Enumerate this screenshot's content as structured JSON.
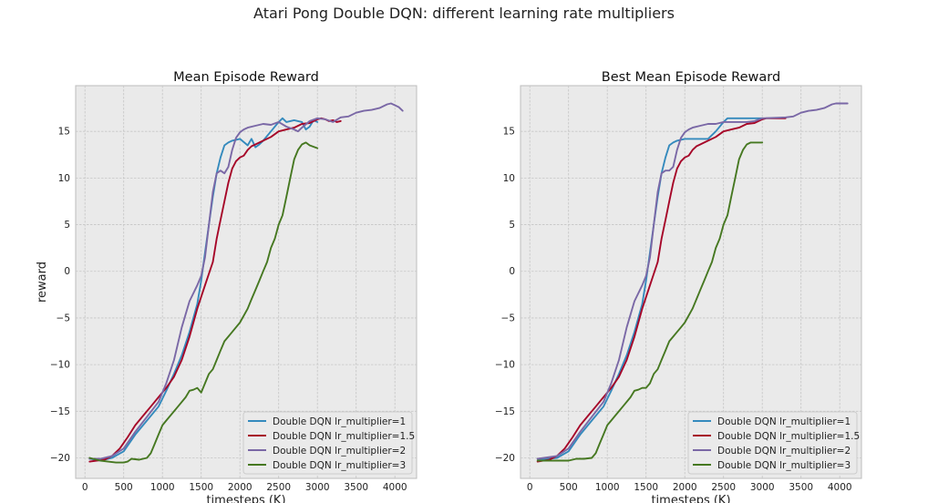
{
  "suptitle": "Atari Pong Double DQN: different learning rate multipliers",
  "colors": {
    "lr_1": "#348abd",
    "lr_1_5": "#a60628",
    "lr_2": "#7a68a6",
    "lr_3": "#467821",
    "panel_bg": "#eaeaea",
    "grid": "#c6c6c6"
  },
  "chart_data": [
    {
      "type": "line",
      "title": "Mean Episode Reward",
      "xlabel": "timesteps (K)",
      "ylabel": "reward",
      "xlim": [
        -120,
        4280
      ],
      "ylim": [
        -22.2,
        19.9
      ],
      "xticks": [
        0,
        500,
        1000,
        1500,
        2000,
        2500,
        3000,
        3500,
        4000
      ],
      "yticks": [
        -20,
        -15,
        -10,
        -5,
        0,
        5,
        10,
        15
      ],
      "grid": true,
      "legend_position": "lower-right",
      "series": [
        {
          "name": "Double DQN lr_multiplier=1",
          "color_key": "lr_1",
          "x": [
            60,
            200,
            350,
            500,
            650,
            800,
            950,
            1050,
            1150,
            1250,
            1350,
            1450,
            1500,
            1550,
            1600,
            1650,
            1700,
            1750,
            1800,
            1850,
            1900,
            2000,
            2100,
            2150,
            2200,
            2250,
            2300,
            2400,
            2500,
            2550,
            2600,
            2700,
            2800,
            2850,
            2900,
            2950,
            3000
          ],
          "y": [
            -20.1,
            -20.3,
            -20.0,
            -19.3,
            -17.5,
            -16.0,
            -14.5,
            -12.8,
            -11.0,
            -9.0,
            -6.5,
            -3.5,
            -1.0,
            2.0,
            5.0,
            8.0,
            10.5,
            12.2,
            13.5,
            13.8,
            14.0,
            14.2,
            13.5,
            14.2,
            13.3,
            13.6,
            14.0,
            15.0,
            16.0,
            16.4,
            16.0,
            16.2,
            16.0,
            15.2,
            15.5,
            16.2,
            16.0
          ]
        },
        {
          "name": "Double DQN lr_multiplier=1.5",
          "color_key": "lr_1_5",
          "x": [
            60,
            150,
            250,
            350,
            450,
            550,
            650,
            750,
            850,
            950,
            1050,
            1150,
            1250,
            1350,
            1450,
            1550,
            1650,
            1700,
            1750,
            1800,
            1850,
            1900,
            1950,
            2000,
            2050,
            2100,
            2150,
            2200,
            2300,
            2400,
            2500,
            2600,
            2700,
            2800,
            2900,
            3000,
            3050,
            3100,
            3150,
            3200,
            3250,
            3300
          ],
          "y": [
            -20.4,
            -20.3,
            -20.2,
            -19.8,
            -19.0,
            -17.8,
            -16.5,
            -15.5,
            -14.5,
            -13.5,
            -12.5,
            -11.3,
            -9.5,
            -7.0,
            -4.0,
            -1.5,
            1.0,
            3.5,
            5.5,
            7.5,
            9.5,
            11.0,
            11.8,
            12.2,
            12.4,
            13.0,
            13.4,
            13.6,
            14.0,
            14.4,
            15.0,
            15.2,
            15.4,
            15.8,
            15.9,
            16.3,
            16.4,
            16.3,
            16.1,
            16.2,
            16.0,
            16.1
          ]
        },
        {
          "name": "Double DQN lr_multiplier=2",
          "color_key": "lr_2",
          "x": [
            60,
            200,
            350,
            500,
            650,
            800,
            950,
            1050,
            1150,
            1250,
            1350,
            1450,
            1500,
            1550,
            1600,
            1650,
            1700,
            1750,
            1800,
            1850,
            1900,
            1950,
            2000,
            2050,
            2100,
            2200,
            2300,
            2400,
            2500,
            2600,
            2700,
            2750,
            2800,
            2900,
            3000,
            3100,
            3200,
            3300,
            3400,
            3500,
            3600,
            3700,
            3800,
            3900,
            3950,
            4000,
            4050,
            4100
          ],
          "y": [
            -20.1,
            -20.1,
            -19.8,
            -19.0,
            -17.2,
            -15.6,
            -14.0,
            -12.0,
            -9.5,
            -6.0,
            -3.2,
            -1.5,
            -0.5,
            1.5,
            5.0,
            8.5,
            10.5,
            10.8,
            10.5,
            11.2,
            13.0,
            14.3,
            14.9,
            15.2,
            15.4,
            15.6,
            15.8,
            15.7,
            16.0,
            15.5,
            15.2,
            15.0,
            15.4,
            16.1,
            16.4,
            16.3,
            16.0,
            16.5,
            16.6,
            17.0,
            17.2,
            17.3,
            17.5,
            17.9,
            18.0,
            17.8,
            17.6,
            17.2
          ]
        },
        {
          "name": "Double DQN lr_multiplier=3",
          "color_key": "lr_3",
          "x": [
            60,
            200,
            300,
            400,
            500,
            550,
            600,
            700,
            800,
            850,
            900,
            950,
            1000,
            1050,
            1100,
            1200,
            1300,
            1350,
            1400,
            1450,
            1500,
            1550,
            1600,
            1650,
            1700,
            1750,
            1800,
            1850,
            1900,
            1950,
            2000,
            2100,
            2150,
            2200,
            2250,
            2300,
            2350,
            2400,
            2450,
            2500,
            2550,
            2600,
            2650,
            2700,
            2750,
            2800,
            2850,
            2900,
            3000
          ],
          "y": [
            -20.0,
            -20.3,
            -20.4,
            -20.5,
            -20.5,
            -20.4,
            -20.1,
            -20.2,
            -20.0,
            -19.5,
            -18.5,
            -17.5,
            -16.5,
            -16.0,
            -15.5,
            -14.5,
            -13.5,
            -12.8,
            -12.7,
            -12.5,
            -13.0,
            -12.0,
            -11.0,
            -10.5,
            -9.5,
            -8.5,
            -7.5,
            -7.0,
            -6.5,
            -6.0,
            -5.5,
            -4.0,
            -3.0,
            -2.0,
            -1.0,
            0.0,
            1.0,
            2.5,
            3.5,
            5.0,
            6.0,
            8.0,
            10.0,
            12.0,
            13.0,
            13.6,
            13.8,
            13.5,
            13.2
          ]
        }
      ]
    },
    {
      "type": "line",
      "title": "Best Mean Episode Reward",
      "xlabel": "timesteps (K)",
      "ylabel": "",
      "xlim": [
        -120,
        4280
      ],
      "ylim": [
        -22.2,
        19.9
      ],
      "xticks": [
        0,
        500,
        1000,
        1500,
        2000,
        2500,
        3000,
        3500,
        4000
      ],
      "yticks": [
        -20,
        -15,
        -10,
        -5,
        0,
        5,
        10,
        15
      ],
      "grid": true,
      "legend_position": "lower-right",
      "series": [
        {
          "name": "Double DQN lr_multiplier=1",
          "color_key": "lr_1",
          "x": [
            100,
            200,
            350,
            500,
            650,
            800,
            950,
            1050,
            1150,
            1250,
            1350,
            1450,
            1500,
            1550,
            1600,
            1650,
            1700,
            1750,
            1800,
            1850,
            1900,
            2000,
            2100,
            2200,
            2300,
            2400,
            2500,
            2550,
            2600,
            2700,
            2800,
            2900,
            3000
          ],
          "y": [
            -20.1,
            -20.1,
            -20.0,
            -19.3,
            -17.5,
            -16.0,
            -14.5,
            -12.8,
            -11.0,
            -9.0,
            -6.5,
            -3.5,
            -1.0,
            2.0,
            5.0,
            8.0,
            10.5,
            12.2,
            13.5,
            13.8,
            14.0,
            14.2,
            14.2,
            14.2,
            14.2,
            15.0,
            16.0,
            16.4,
            16.4,
            16.4,
            16.4,
            16.4,
            16.4
          ]
        },
        {
          "name": "Double DQN lr_multiplier=1.5",
          "color_key": "lr_1_5",
          "x": [
            100,
            250,
            350,
            450,
            550,
            650,
            750,
            850,
            950,
            1050,
            1150,
            1250,
            1350,
            1450,
            1550,
            1650,
            1700,
            1750,
            1800,
            1850,
            1900,
            1950,
            2000,
            2050,
            2100,
            2150,
            2200,
            2300,
            2400,
            2500,
            2600,
            2700,
            2800,
            2900,
            3000,
            3050,
            3150,
            3300
          ],
          "y": [
            -20.4,
            -20.2,
            -19.8,
            -19.0,
            -17.8,
            -16.5,
            -15.5,
            -14.5,
            -13.5,
            -12.5,
            -11.3,
            -9.5,
            -7.0,
            -4.0,
            -1.5,
            1.0,
            3.5,
            5.5,
            7.5,
            9.5,
            11.0,
            11.8,
            12.2,
            12.4,
            13.0,
            13.4,
            13.6,
            14.0,
            14.4,
            15.0,
            15.2,
            15.4,
            15.8,
            15.9,
            16.3,
            16.4,
            16.4,
            16.4
          ]
        },
        {
          "name": "Double DQN lr_multiplier=2",
          "color_key": "lr_2",
          "x": [
            100,
            350,
            500,
            650,
            800,
            950,
            1050,
            1150,
            1250,
            1350,
            1450,
            1500,
            1550,
            1600,
            1650,
            1700,
            1750,
            1800,
            1850,
            1900,
            1950,
            2000,
            2050,
            2100,
            2200,
            2300,
            2400,
            2500,
            2600,
            2700,
            2800,
            2900,
            3000,
            3300,
            3400,
            3500,
            3600,
            3700,
            3800,
            3900,
            3950,
            4100
          ],
          "y": [
            -20.1,
            -19.8,
            -19.0,
            -17.2,
            -15.6,
            -14.0,
            -12.0,
            -9.5,
            -6.0,
            -3.2,
            -1.5,
            -0.5,
            1.5,
            5.0,
            8.5,
            10.5,
            10.8,
            10.8,
            11.2,
            13.0,
            14.3,
            14.9,
            15.2,
            15.4,
            15.6,
            15.8,
            15.8,
            16.0,
            16.0,
            16.0,
            16.0,
            16.1,
            16.4,
            16.5,
            16.6,
            17.0,
            17.2,
            17.3,
            17.5,
            17.9,
            18.0,
            18.0
          ]
        },
        {
          "name": "Double DQN lr_multiplier=3",
          "color_key": "lr_3",
          "x": [
            100,
            200,
            300,
            400,
            500,
            600,
            700,
            800,
            850,
            900,
            950,
            1000,
            1050,
            1100,
            1200,
            1300,
            1350,
            1400,
            1450,
            1500,
            1550,
            1600,
            1650,
            1700,
            1750,
            1800,
            1850,
            1900,
            1950,
            2000,
            2100,
            2150,
            2200,
            2250,
            2300,
            2350,
            2400,
            2450,
            2500,
            2550,
            2600,
            2650,
            2700,
            2750,
            2800,
            2850,
            3000
          ],
          "y": [
            -20.3,
            -20.3,
            -20.3,
            -20.3,
            -20.3,
            -20.1,
            -20.1,
            -20.0,
            -19.5,
            -18.5,
            -17.5,
            -16.5,
            -16.0,
            -15.5,
            -14.5,
            -13.5,
            -12.8,
            -12.7,
            -12.5,
            -12.5,
            -12.0,
            -11.0,
            -10.5,
            -9.5,
            -8.5,
            -7.5,
            -7.0,
            -6.5,
            -6.0,
            -5.5,
            -4.0,
            -3.0,
            -2.0,
            -1.0,
            0.0,
            1.0,
            2.5,
            3.5,
            5.0,
            6.0,
            8.0,
            10.0,
            12.0,
            13.0,
            13.6,
            13.8,
            13.8
          ]
        }
      ]
    }
  ]
}
